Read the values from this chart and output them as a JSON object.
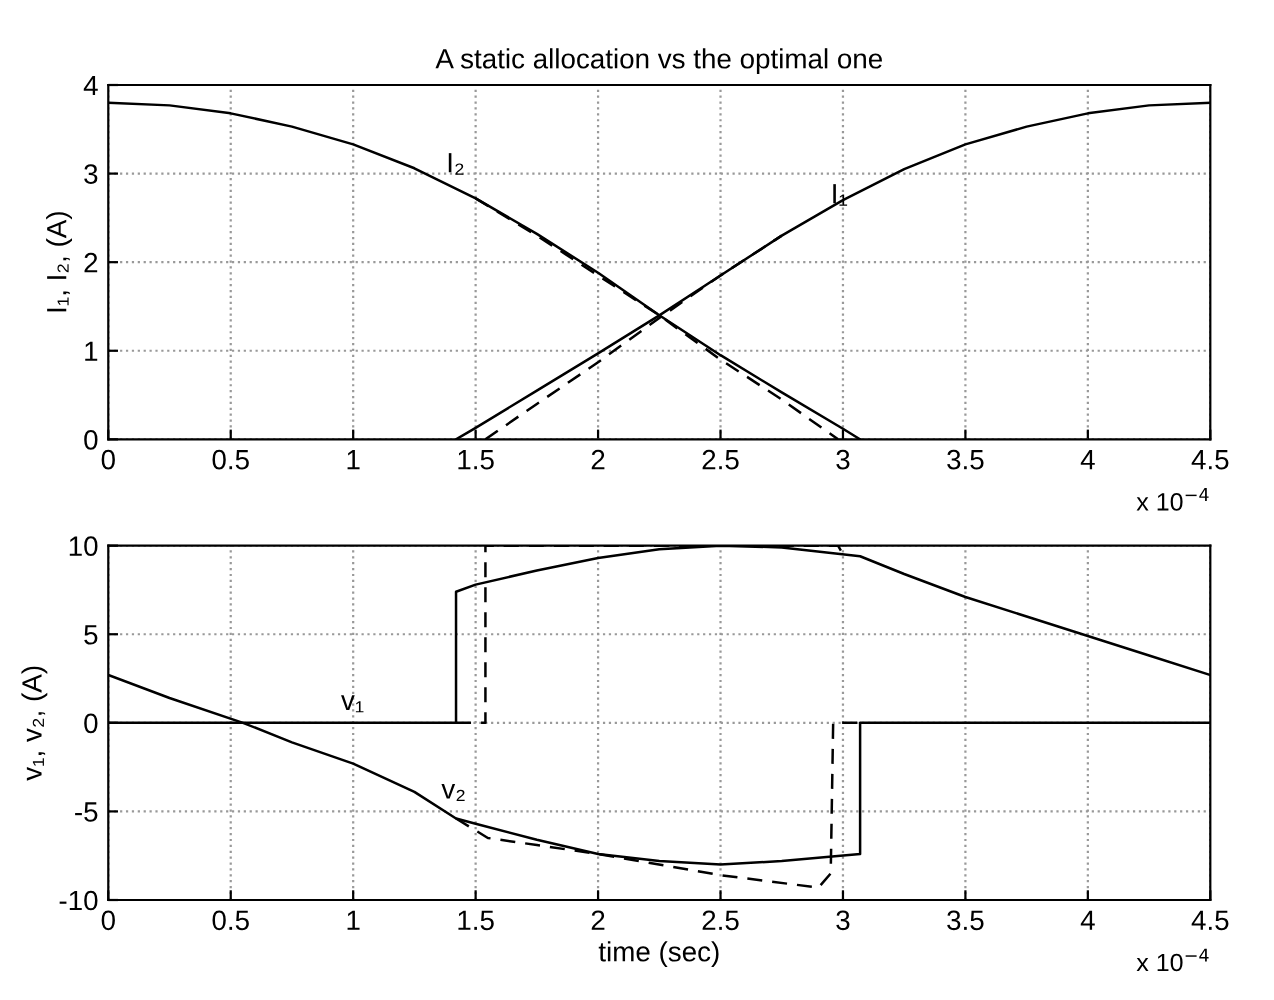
{
  "chart_data": [
    {
      "type": "line",
      "title": "A static allocation vs the optimal one",
      "ylabel": "I₁, I₂, (A)",
      "xlim": [
        0,
        4.5
      ],
      "xticks": [
        0,
        0.5,
        1,
        1.5,
        2,
        2.5,
        3,
        3.5,
        4,
        4.5
      ],
      "ylim": [
        0,
        4
      ],
      "yticks": [
        0,
        1,
        2,
        3,
        4
      ],
      "grid": true,
      "legend": false,
      "annotations": [
        {
          "text": "I₂",
          "x": 1.38,
          "y": 2.95
        },
        {
          "text": "I₁",
          "x": 2.95,
          "y": 2.6
        },
        "x 10$^{−4}$"
      ],
      "series": [
        {
          "color": "#000000",
          "line_style": "solid",
          "x": [
            1.42,
            1.5,
            1.75,
            2,
            2.25,
            2.5,
            2.75,
            3,
            3.25,
            3.5,
            3.75,
            4,
            4.25,
            4.5
          ],
          "values": [
            0,
            0.13,
            0.55,
            0.97,
            1.4,
            1.85,
            2.3,
            2.7,
            3.05,
            3.33,
            3.53,
            3.68,
            3.77,
            3.8
          ]
        },
        {
          "color": "#000000",
          "line_style": "solid",
          "x": [
            0,
            0.25,
            0.5,
            0.75,
            1,
            1.25,
            1.5,
            1.75,
            2,
            2.25,
            2.5,
            2.75,
            3,
            3.07
          ],
          "values": [
            3.8,
            3.77,
            3.68,
            3.53,
            3.33,
            3.06,
            2.72,
            2.32,
            1.88,
            1.4,
            0.95,
            0.53,
            0.12,
            0
          ]
        },
        {
          "color": "#000000",
          "line_style": "dashed",
          "x": [
            1.54,
            1.75,
            2,
            2.25,
            2.5,
            2.75
          ],
          "values": [
            0,
            0.4,
            0.87,
            1.37,
            1.85,
            2.3
          ]
        },
        {
          "color": "#000000",
          "line_style": "dashed",
          "x": [
            1.5,
            1.75,
            2,
            2.25,
            2.5,
            2.75,
            2.98
          ],
          "values": [
            2.72,
            2.3,
            1.85,
            1.4,
            0.9,
            0.45,
            0
          ]
        }
      ]
    },
    {
      "type": "line",
      "xlabel": "time (sec)",
      "ylabel": "v₁, v₂, (A)",
      "xlim": [
        0,
        4.5
      ],
      "xticks": [
        0,
        0.5,
        1,
        1.5,
        2,
        2.5,
        3,
        3.5,
        4,
        4.5
      ],
      "ylim": [
        -10,
        10
      ],
      "yticks": [
        -10,
        -5,
        0,
        5,
        10
      ],
      "grid": true,
      "legend": false,
      "annotations": [
        {
          "text": "v₁",
          "x": 0.95,
          "y": 0.4
        },
        {
          "text": "v₂",
          "x": 1.36,
          "y": -4.6
        },
        "x 10$^{−4}$"
      ],
      "series": [
        {
          "color": "#000000",
          "line_style": "solid",
          "x": [
            0,
            1.42,
            1.42,
            1.5,
            1.75,
            2,
            2.25,
            2.5,
            2.75,
            3.07,
            3.25,
            3.5,
            3.75,
            4,
            4.25,
            4.5
          ],
          "values": [
            0,
            0,
            7.4,
            7.8,
            8.6,
            9.3,
            9.8,
            10,
            9.9,
            9.4,
            8.4,
            7.1,
            6,
            4.9,
            3.8,
            2.7
          ]
        },
        {
          "color": "#000000",
          "line_style": "solid",
          "x": [
            0,
            0.25,
            0.55,
            0.75,
            1,
            1.25,
            1.42,
            1.5,
            1.75,
            2,
            2.25,
            2.5,
            2.75,
            3.07,
            3.07,
            4.5
          ],
          "values": [
            2.7,
            1.4,
            0,
            -1.1,
            -2.3,
            -3.9,
            -5.4,
            -5.7,
            -6.6,
            -7.4,
            -7.8,
            -8.0,
            -7.8,
            -7.4,
            0,
            0
          ]
        },
        {
          "color": "#000000",
          "line_style": "dashed",
          "x": [
            1.42,
            1.54,
            1.54,
            2.45,
            2.98,
            3.0
          ],
          "values": [
            0,
            0,
            10,
            10,
            10,
            9.5
          ]
        },
        {
          "color": "#000000",
          "line_style": "dashed",
          "x": [
            1.42,
            1.55,
            1.75,
            2,
            2.5,
            2.9,
            2.95,
            2.96,
            3.07
          ],
          "values": [
            -5.4,
            -6.5,
            -6.9,
            -7.4,
            -8.6,
            -9.3,
            -8.5,
            0,
            0
          ]
        }
      ]
    }
  ]
}
